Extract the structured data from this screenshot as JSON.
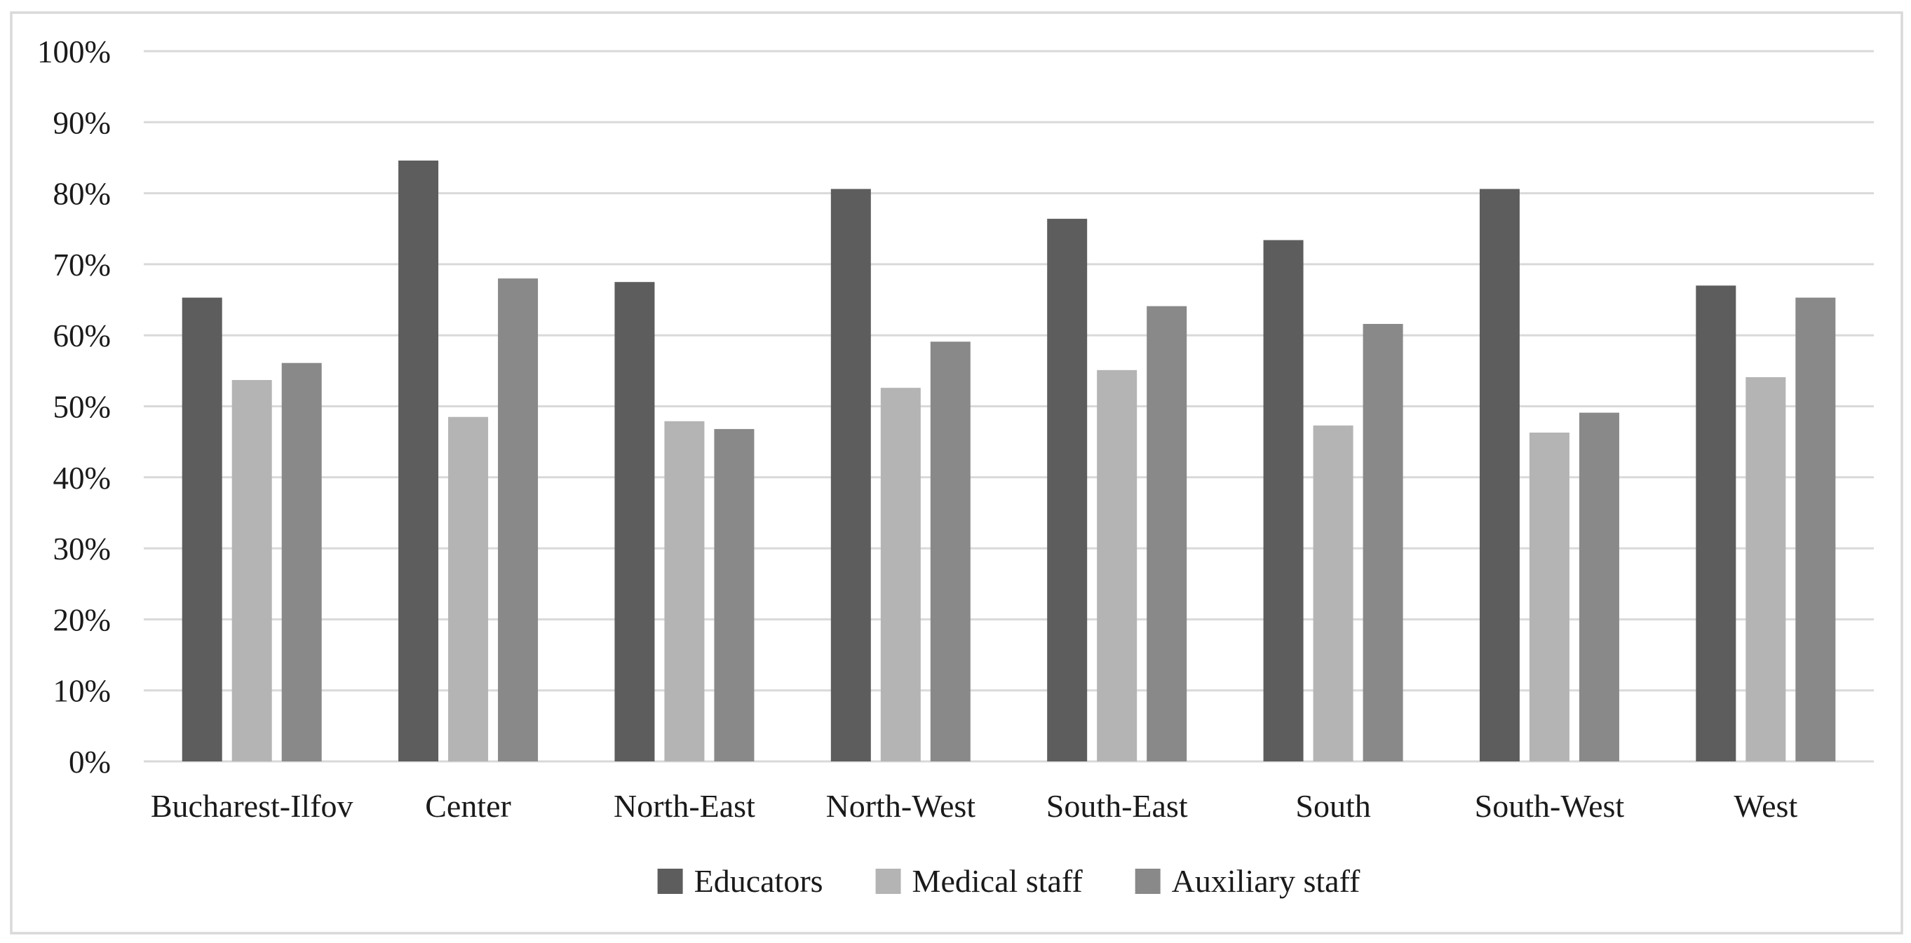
{
  "chart_data": {
    "type": "bar",
    "title": "",
    "xlabel": "",
    "ylabel": "",
    "categories": [
      "Bucharest-Ilfov",
      "Center",
      "North-East",
      "North-West",
      "South-East",
      "South",
      "South-West",
      "West"
    ],
    "series": [
      {
        "name": "Educators",
        "color": "#5d5d5d",
        "values": [
          65.3,
          84.6,
          67.5,
          80.6,
          76.4,
          73.4,
          80.6,
          67.0
        ]
      },
      {
        "name": "Medical staff",
        "color": "#b4b4b4",
        "values": [
          53.7,
          48.5,
          47.9,
          52.6,
          55.1,
          47.3,
          46.3,
          54.1
        ]
      },
      {
        "name": "Auxiliary staff",
        "color": "#898989",
        "values": [
          56.1,
          68.0,
          46.8,
          59.1,
          64.1,
          61.6,
          49.1,
          65.3
        ]
      }
    ],
    "ylim": [
      0,
      100
    ],
    "ytick_step": 10,
    "ytick_labels": [
      "0%",
      "10%",
      "20%",
      "30%",
      "40%",
      "50%",
      "60%",
      "70%",
      "80%",
      "90%",
      "100%"
    ],
    "grid": true,
    "legend_position": "bottom",
    "legend_labels": [
      "Educators",
      "Medical staff",
      "Auxiliary staff"
    ],
    "colors": {
      "background": "#ffffff",
      "frame_border": "#d9d9d9",
      "gridline": "#d9d9d9",
      "text": "#1a1a1a"
    }
  }
}
